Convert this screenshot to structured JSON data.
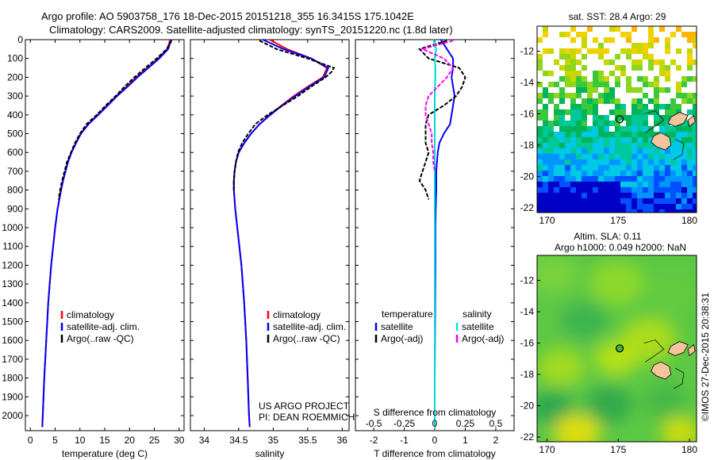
{
  "header": {
    "line1": "Argo profile: AO 5903758_176 18-Dec-2015 20151218_355 16.3415S 175.1042E",
    "line2": "Climatology: CARS2009. Satellite-adjusted climatology: synTS_20151220.nc (1.8d later)"
  },
  "colors": {
    "climatology": "#ff0000",
    "satellite": "#0000ff",
    "argo": "#000000",
    "sal_sat": "#00e5e5",
    "sal_argo": "#ff00ff",
    "land": "#f4c49c"
  },
  "chart_data": [
    {
      "type": "line",
      "panel": "temperature",
      "xlabel": "temperature (deg C)",
      "ylabel": "",
      "xlim": [
        -1,
        31
      ],
      "ylim": [
        2080,
        0
      ],
      "xticks": [
        0,
        5,
        10,
        15,
        20,
        25,
        30
      ],
      "yticks": [
        0,
        100,
        200,
        300,
        400,
        500,
        600,
        700,
        800,
        900,
        1000,
        1100,
        1200,
        1300,
        1400,
        1500,
        1600,
        1700,
        1800,
        1900,
        2000
      ],
      "legend": [
        "climatology",
        "satellite-adj. clim.",
        "Argo(..raw -QC)"
      ],
      "series": [
        {
          "name": "climatology",
          "color": "#ff0000",
          "depth": [
            0,
            50,
            100,
            150,
            200,
            250,
            300,
            350,
            400,
            450,
            500,
            550,
            600,
            650,
            700,
            750,
            800,
            900,
            1000,
            1200,
            1400,
            1600,
            1800,
            2000,
            2060
          ],
          "values": [
            28.2,
            27.6,
            25.8,
            23.6,
            21.4,
            19.4,
            17.4,
            15.5,
            13.6,
            11.7,
            10.2,
            9.2,
            8.3,
            7.6,
            7.1,
            6.6,
            6.2,
            5.5,
            5.0,
            4.2,
            3.6,
            3.2,
            2.8,
            2.5,
            2.4
          ]
        },
        {
          "name": "satellite-adj. clim.",
          "color": "#0000ff",
          "depth": [
            0,
            50,
            100,
            150,
            200,
            250,
            300,
            350,
            400,
            450,
            500,
            550,
            600,
            650,
            700,
            750,
            800,
            900,
            1000,
            1200,
            1400,
            1600,
            1800,
            2000,
            2060
          ],
          "values": [
            28.4,
            27.8,
            26.0,
            23.8,
            21.6,
            19.6,
            17.5,
            15.6,
            13.7,
            11.7,
            10.2,
            9.2,
            8.3,
            7.6,
            7.1,
            6.6,
            6.2,
            5.5,
            5.0,
            4.2,
            3.6,
            3.2,
            2.8,
            2.5,
            2.4
          ]
        },
        {
          "name": "Argo(..raw -QC)",
          "color": "#000000",
          "depth": [
            5,
            50,
            100,
            150,
            200,
            250,
            300,
            350,
            400,
            450,
            500,
            550,
            600,
            650,
            700,
            750,
            800,
            850
          ],
          "values": [
            28.5,
            27.5,
            25.5,
            23.2,
            21.0,
            19.0,
            17.2,
            15.2,
            13.4,
            11.3,
            10.0,
            9.0,
            8.2,
            7.4,
            6.9,
            6.4,
            6.0,
            5.7
          ]
        }
      ]
    },
    {
      "type": "line",
      "panel": "salinity",
      "xlabel": "salinity",
      "ylabel": "",
      "xlim": [
        33.8,
        36.1
      ],
      "ylim": [
        2080,
        0
      ],
      "xticks": [
        34,
        34.5,
        35,
        35.5,
        36
      ],
      "legend": [
        "climatology",
        "satellite-adj. clim.",
        "Argo(..raw -QC)"
      ],
      "annotation": [
        "US ARGO PROJECT",
        "PI: DEAN ROEMMICH"
      ],
      "series": [
        {
          "name": "climatology",
          "color": "#ff0000",
          "depth": [
            0,
            50,
            100,
            150,
            200,
            250,
            300,
            350,
            400,
            450,
            500,
            550,
            600,
            650,
            700,
            750,
            800,
            900,
            1000,
            1200,
            1400,
            1600,
            1800,
            2000,
            2060
          ],
          "values": [
            34.95,
            35.2,
            35.55,
            35.78,
            35.72,
            35.5,
            35.3,
            35.12,
            34.95,
            34.8,
            34.68,
            34.58,
            34.5,
            34.46,
            34.44,
            34.43,
            34.43,
            34.45,
            34.48,
            34.54,
            34.58,
            34.61,
            34.63,
            34.65,
            34.66
          ]
        },
        {
          "name": "satellite-adj. clim.",
          "color": "#0000ff",
          "depth": [
            0,
            50,
            100,
            150,
            200,
            250,
            300,
            350,
            400,
            450,
            500,
            550,
            600,
            650,
            700,
            750,
            800,
            900,
            1000,
            1200,
            1400,
            1600,
            1800,
            2000,
            2060
          ],
          "values": [
            34.85,
            35.15,
            35.55,
            35.8,
            35.74,
            35.52,
            35.32,
            35.13,
            34.96,
            34.8,
            34.68,
            34.58,
            34.5,
            34.46,
            34.44,
            34.43,
            34.43,
            34.45,
            34.48,
            34.54,
            34.58,
            34.61,
            34.63,
            34.65,
            34.66
          ]
        },
        {
          "name": "Argo(..raw -QC)",
          "color": "#000000",
          "depth": [
            5,
            50,
            100,
            150,
            170,
            200,
            250,
            300,
            350,
            400,
            450,
            500,
            550,
            600,
            650,
            700,
            750,
            800
          ],
          "values": [
            34.8,
            35.05,
            35.5,
            35.88,
            35.85,
            35.76,
            35.55,
            35.36,
            35.14,
            34.92,
            34.74,
            34.64,
            34.55,
            34.49,
            34.46,
            34.44,
            34.43,
            34.43
          ]
        }
      ]
    },
    {
      "type": "line",
      "panel": "difference",
      "xlabel": "T difference from climatology",
      "xlabel2": "S difference from climatology",
      "xlim": [
        -2.6,
        2.6
      ],
      "ylim": [
        2080,
        0
      ],
      "xticks": [
        -2,
        -1,
        0,
        1,
        2
      ],
      "xticklabels_S": [
        "-0.5",
        "-0.25",
        "0",
        "0.25",
        "0.5"
      ],
      "legend_left_title": "temperature",
      "legend_right_title": "salinity",
      "legend": [
        "satellite",
        "Argo(-adj)",
        "satellite",
        "Argo(-adj)"
      ],
      "series": [
        {
          "name": "satellite",
          "color": "#0000ff",
          "depth": [
            0,
            50,
            100,
            150,
            200,
            250,
            300,
            350,
            400,
            450,
            500,
            550,
            600,
            700,
            800,
            900,
            1000,
            1200,
            1500,
            1800,
            2060
          ],
          "values": [
            0.2,
            0.4,
            0.6,
            0.6,
            0.55,
            0.6,
            0.65,
            0.6,
            0.55,
            0.5,
            0.3,
            0.15,
            0.1,
            0.05,
            0.05,
            0.03,
            0.02,
            0.02,
            0.01,
            0.0,
            0.0
          ]
        },
        {
          "name": "Argo(-adj)",
          "color": "#000000",
          "depth": [
            5,
            50,
            100,
            150,
            200,
            250,
            300,
            350,
            400,
            450,
            500,
            550,
            600,
            650,
            700,
            750,
            800,
            850
          ],
          "values": [
            0.4,
            -0.5,
            -0.2,
            0.8,
            1.0,
            0.9,
            0.7,
            0.3,
            -0.2,
            -0.3,
            -0.3,
            -0.3,
            -0.2,
            -0.3,
            -0.4,
            -0.5,
            -0.3,
            -0.2
          ]
        },
        {
          "name": "satellite",
          "color": "#00e5e5",
          "depth": [
            0,
            50,
            100,
            150,
            200,
            250,
            300,
            400,
            500,
            600,
            800,
            1000,
            1500,
            2060
          ],
          "values": [
            -0.05,
            0.05,
            0.0,
            0.02,
            0.02,
            0.01,
            0.0,
            0.0,
            0.0,
            0.0,
            0.0,
            0.0,
            0.0,
            0.0
          ]
        },
        {
          "name": "Argo(-adj)",
          "color": "#ff00ff",
          "depth": [
            5,
            50,
            100,
            150,
            200,
            250,
            300,
            350,
            400,
            450,
            500,
            550,
            600,
            650,
            700
          ],
          "values": [
            0.6,
            -0.4,
            0.3,
            0.6,
            0.4,
            0.1,
            -0.2,
            -0.3,
            -0.3,
            -0.2,
            -0.1,
            -0.1,
            -0.05,
            -0.05,
            0.0
          ]
        }
      ]
    },
    {
      "type": "heatmap",
      "panel": "sst_map",
      "title": "sat. SST: 28.4  Argo: 29",
      "xticks": [
        170,
        175,
        180
      ],
      "yticks": [
        -12,
        -14,
        -16,
        -18,
        -20,
        -22
      ],
      "xlim": [
        169.3,
        180.5
      ],
      "ylim": [
        -22.3,
        -10.4
      ],
      "marker": {
        "lon": 175.1,
        "lat": -16.34
      }
    },
    {
      "type": "heatmap",
      "panel": "sla_map",
      "title": "Altim. SLA: 0.11",
      "title2": "Argo h1000: 0.049 h2000: NaN",
      "xticks": [
        170,
        175,
        180
      ],
      "yticks": [
        -12,
        -14,
        -16,
        -18,
        -20,
        -22
      ],
      "xlim": [
        169.3,
        180.5
      ],
      "ylim": [
        -22.3,
        -10.4
      ],
      "marker": {
        "lon": 175.1,
        "lat": -16.34
      }
    }
  ],
  "credit": "©IMOS 27-Dec-2015 20:38:31"
}
